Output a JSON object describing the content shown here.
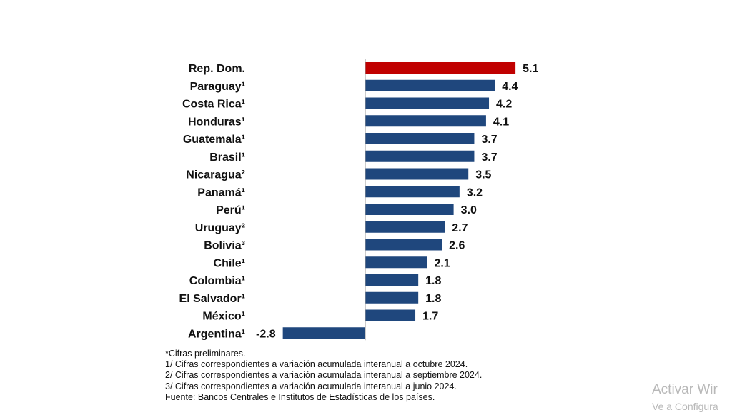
{
  "chart_data": {
    "type": "bar",
    "orientation": "horizontal",
    "categories": [
      "Rep. Dom.",
      "Paraguay¹",
      "Costa Rica¹",
      "Honduras¹",
      "Guatemala¹",
      "Brasil¹",
      "Nicaragua²",
      "Panamá¹",
      "Perú¹",
      "Uruguay²",
      "Bolivia³",
      "Chile¹",
      "Colombia¹",
      "El Salvador¹",
      "México¹",
      "Argentina¹"
    ],
    "values": [
      5.1,
      4.4,
      4.2,
      4.1,
      3.7,
      3.7,
      3.5,
      3.2,
      3.0,
      2.7,
      2.6,
      2.1,
      1.8,
      1.8,
      1.7,
      -2.8
    ],
    "value_labels": [
      "5.1",
      "4.4",
      "4.2",
      "4.1",
      "3.7",
      "3.7",
      "3.5",
      "3.2",
      "3.0",
      "2.7",
      "2.6",
      "2.1",
      "1.8",
      "1.8",
      "1.7",
      "-2.8"
    ],
    "highlight_index": 0,
    "colors": {
      "bar": "#1f477d",
      "highlight": "#c00000"
    },
    "xlim": [
      -3.5,
      5.5
    ],
    "grid": false,
    "legend": "none",
    "title": "",
    "xlabel": "",
    "ylabel": ""
  },
  "footnotes": [
    "*Cifras preliminares.",
    "1/ Cifras correspondientes a variación acumulada interanual a octubre 2024.",
    "2/ Cifras correspondientes a variación acumulada interanual a septiembre 2024.",
    "3/ Cifras correspondientes a variación acumulada interanual a junio 2024.",
    "Fuente: Bancos Centrales e Institutos de Estadísticas de los países."
  ],
  "watermark": {
    "title": "Activar Wir",
    "subtitle": "Ve a Configura"
  }
}
